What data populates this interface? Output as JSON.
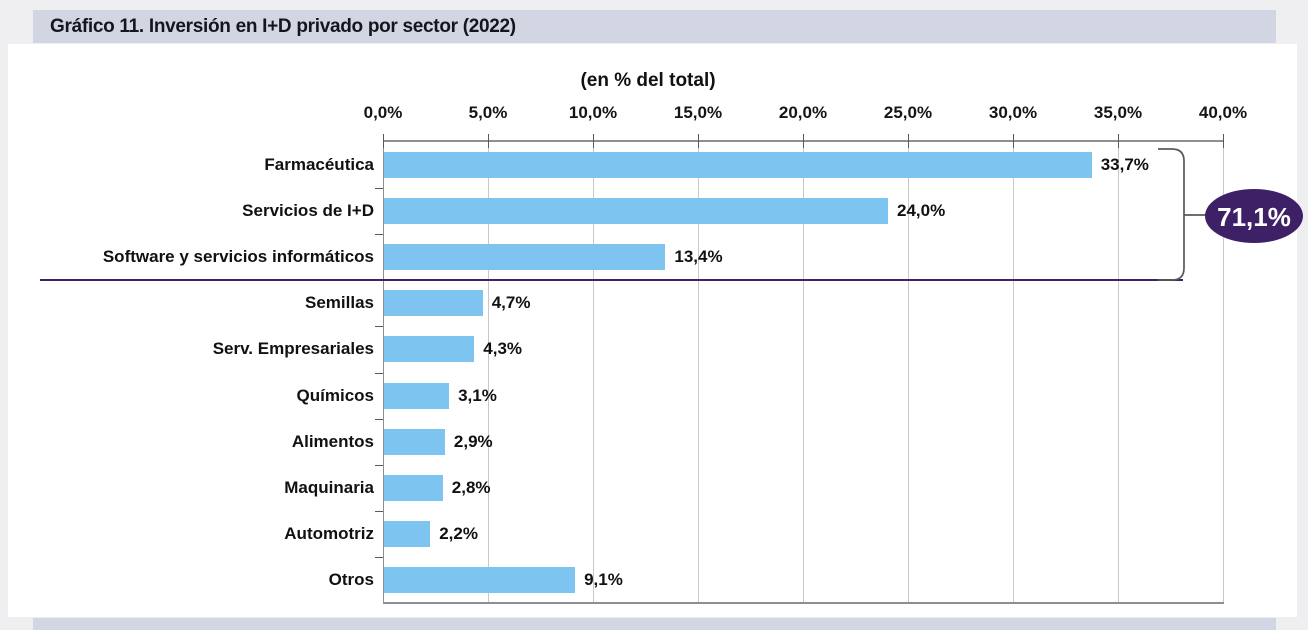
{
  "page": {
    "title": "Gráfico 11. Inversión en I+D privado por sector (2022)",
    "subtitle": "(en % del total)"
  },
  "colors": {
    "bar": "#7ec4f0",
    "title_bar_bg": "#d2d6e3",
    "page_bg": "#efeff1",
    "panel_bg": "#ffffff",
    "gridline": "#c8c8c8",
    "axis": "#8f8f8f",
    "separator_line": "#3f2169",
    "annotation_fill": "#3d2066",
    "annotation_text": "#ffffff",
    "bracket": "#595959",
    "text": "#111111"
  },
  "chart_data": {
    "type": "bar",
    "orientation": "horizontal",
    "title": "Gráfico 11. Inversión en I+D privado por sector (2022)",
    "subtitle": "(en % del total)",
    "categories": [
      "Farmacéutica",
      "Servicios de I+D",
      "Software y servicios informáticos",
      "Semillas",
      "Serv. Empresariales",
      "Químicos",
      "Alimentos",
      "Maquinaria",
      "Automotriz",
      "Otros"
    ],
    "values": [
      33.7,
      24.0,
      13.4,
      4.7,
      4.3,
      3.1,
      2.9,
      2.8,
      2.2,
      9.1
    ],
    "value_labels": [
      "33,7%",
      "24,0%",
      "13,4%",
      "4,7%",
      "4,3%",
      "3,1%",
      "2,9%",
      "2,8%",
      "2,2%",
      "9,1%"
    ],
    "x_axis": {
      "position": "top",
      "min": 0,
      "max": 40,
      "ticks": [
        0,
        5,
        10,
        15,
        20,
        25,
        30,
        35,
        40
      ],
      "tick_labels": [
        "0,0%",
        "5,0%",
        "10,0%",
        "15,0%",
        "20,0%",
        "25,0%",
        "30,0%",
        "35,0%",
        "40,0%"
      ]
    },
    "grid": true,
    "legend": false,
    "group_annotation": {
      "label": "71,1%",
      "includes_categories": [
        "Farmacéutica",
        "Servicios de I+D",
        "Software y servicios informáticos"
      ]
    },
    "separator_after_category": "Software y servicios informáticos"
  }
}
